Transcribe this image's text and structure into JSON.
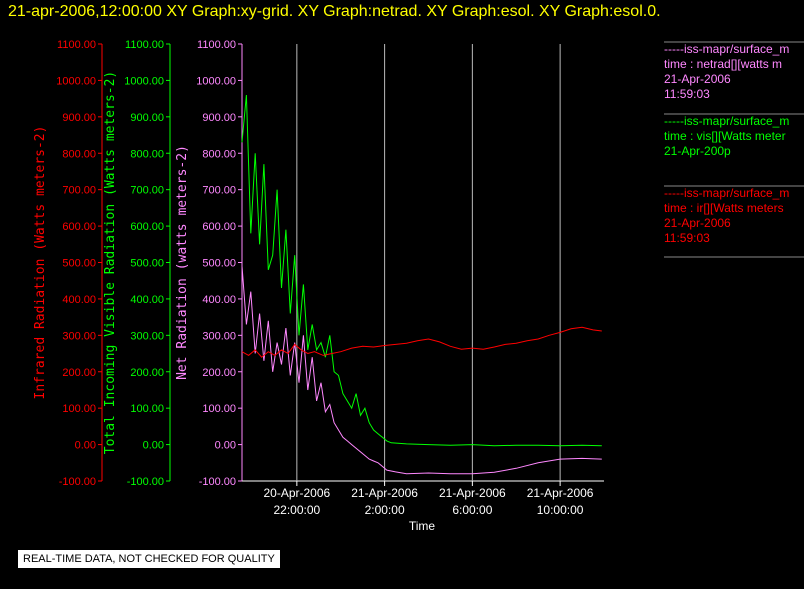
{
  "title": "21-apr-2006,12:00:00  XY Graph:xy-grid.  XY Graph:netrad.  XY Graph:esol.  XY Graph:esol.0.",
  "colors": {
    "ir": "#ff0000",
    "vis": "#00ff00",
    "net": "#ff88ff",
    "background": "#000000",
    "title": "#ffff00"
  },
  "legend": [
    {
      "color": "#ff88ff",
      "lines": [
        "-----iss-mapr/surface_m",
        "time : netrad[][watts m",
        "21-Apr-2006",
        "11:59:03"
      ]
    },
    {
      "color": "#00ff00",
      "lines": [
        "-----iss-mapr/surface_m",
        "time : vis[][Watts meter",
        "21-Apr-200p"
      ]
    },
    {
      "color": "#ff0000",
      "lines": [
        "-----iss-mapr/surface_m",
        "time : ir[][Watts meters",
        "21-Apr-2006",
        "11:59:03"
      ]
    }
  ],
  "quality_note": "REAL-TIME DATA, NOT CHECKED FOR QUALITY",
  "chart_data": {
    "type": "line",
    "xlabel": "Time",
    "x_ticks": [
      {
        "x": 0,
        "line1": "20-Apr-2006",
        "line2": "22:00:00"
      },
      {
        "x": 4,
        "line1": "21-Apr-2006",
        "line2": "2:00:00"
      },
      {
        "x": 8,
        "line1": "21-Apr-2006",
        "line2": "6:00:00"
      },
      {
        "x": 12,
        "line1": "21-Apr-2006",
        "line2": "10:00:00"
      }
    ],
    "x_unit": "hours after 20-Apr-2006 22:00:00",
    "xlim": [
      -2.5,
      14.0
    ],
    "ylim": [
      -100,
      1100
    ],
    "y_ticks": [
      "-100.00",
      "0.00",
      "100.00",
      "200.00",
      "300.00",
      "400.00",
      "500.00",
      "600.00",
      "700.00",
      "800.00",
      "900.00",
      "1000.00",
      "1100.00"
    ],
    "y_tick_values": [
      -100,
      0,
      100,
      200,
      300,
      400,
      500,
      600,
      700,
      800,
      900,
      1000,
      1100
    ],
    "axes": [
      {
        "id": "ir",
        "label": "Infrared Radiation (Watts meters-2)",
        "color": "#ff0000"
      },
      {
        "id": "vis",
        "label": "Total Incoming Visible Radiation (Watts meters-2)",
        "color": "#00ff00"
      },
      {
        "id": "net",
        "label": "Net Radiation (watts meters-2)",
        "color": "#ff88ff"
      }
    ],
    "vertical_grid": [
      0,
      4,
      8,
      12
    ],
    "series": [
      {
        "axis": "vis",
        "color": "#00ff00",
        "x": [
          -2.5,
          -2.3,
          -2.1,
          -1.9,
          -1.7,
          -1.5,
          -1.3,
          -1.1,
          -0.9,
          -0.7,
          -0.5,
          -0.3,
          -0.1,
          0.1,
          0.3,
          0.5,
          0.7,
          0.9,
          1.1,
          1.3,
          1.5,
          1.7,
          1.9,
          2.1,
          2.3,
          2.5,
          2.7,
          2.9,
          3.1,
          3.3,
          3.5,
          3.7,
          3.9,
          4.1,
          4.3,
          5,
          6,
          7,
          8,
          9,
          10,
          11,
          12,
          13,
          13.9
        ],
        "y": [
          830,
          960,
          580,
          800,
          550,
          770,
          480,
          520,
          700,
          430,
          590,
          360,
          520,
          300,
          440,
          260,
          330,
          260,
          280,
          240,
          300,
          200,
          190,
          140,
          120,
          100,
          140,
          80,
          100,
          60,
          40,
          30,
          20,
          10,
          5,
          2,
          0,
          -2,
          0,
          -3,
          -2,
          -2,
          -3,
          -2,
          -3
        ]
      },
      {
        "axis": "net",
        "color": "#ff88ff",
        "x": [
          -2.5,
          -2.3,
          -2.1,
          -1.9,
          -1.7,
          -1.5,
          -1.3,
          -1.1,
          -0.9,
          -0.7,
          -0.5,
          -0.3,
          -0.1,
          0.1,
          0.3,
          0.5,
          0.7,
          0.9,
          1.1,
          1.3,
          1.5,
          1.7,
          1.9,
          2.1,
          2.3,
          2.5,
          2.7,
          2.9,
          3.1,
          3.3,
          3.5,
          3.7,
          3.9,
          4.1,
          4.5,
          5,
          6,
          7,
          8,
          9,
          10,
          11,
          12,
          13,
          13.9
        ],
        "y": [
          490,
          330,
          420,
          250,
          360,
          230,
          340,
          200,
          280,
          220,
          320,
          190,
          280,
          170,
          300,
          150,
          240,
          120,
          170,
          90,
          110,
          60,
          40,
          20,
          10,
          0,
          -10,
          -20,
          -30,
          -40,
          -45,
          -50,
          -60,
          -70,
          -75,
          -80,
          -78,
          -80,
          -80,
          -76,
          -65,
          -50,
          -40,
          -38,
          -40
        ]
      },
      {
        "axis": "ir",
        "color": "#ff0000",
        "x": [
          -2.5,
          -2.2,
          -1.9,
          -1.6,
          -1.3,
          -1.0,
          -0.7,
          -0.4,
          -0.1,
          0.2,
          0.5,
          0.8,
          1.2,
          1.6,
          2.0,
          2.5,
          3,
          3.5,
          4,
          4.5,
          5,
          5.5,
          6,
          6.5,
          7,
          7.5,
          8,
          8.5,
          9,
          9.5,
          10,
          10.5,
          11,
          11.5,
          12,
          12.5,
          13,
          13.5,
          13.9
        ],
        "y": [
          255,
          245,
          260,
          240,
          255,
          245,
          260,
          250,
          275,
          260,
          250,
          255,
          245,
          250,
          255,
          265,
          270,
          268,
          272,
          275,
          278,
          285,
          290,
          282,
          270,
          262,
          265,
          262,
          268,
          275,
          278,
          285,
          290,
          300,
          308,
          318,
          322,
          315,
          312
        ]
      }
    ]
  }
}
